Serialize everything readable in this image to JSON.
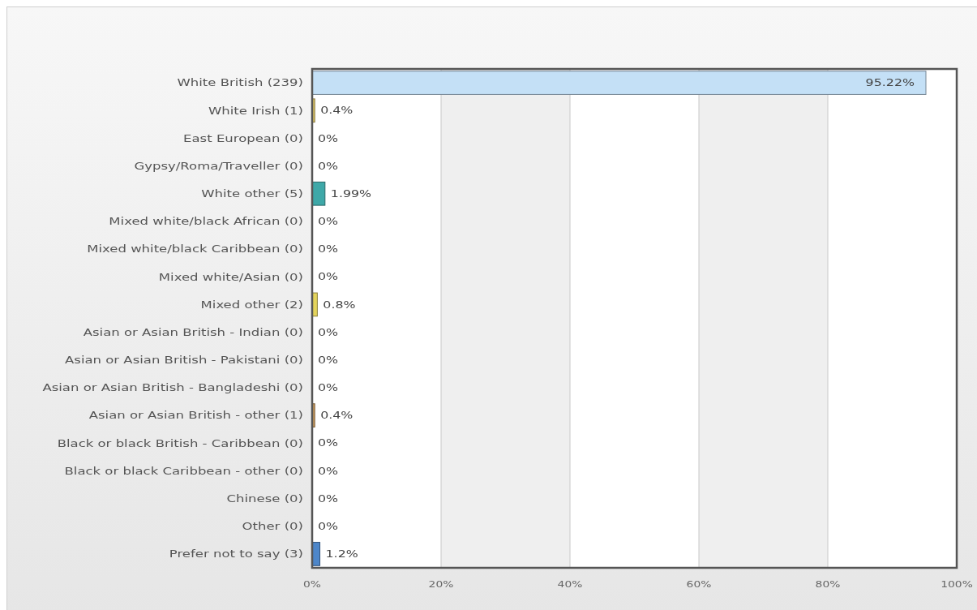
{
  "chart_data": {
    "type": "bar",
    "orientation": "horizontal",
    "categories": [
      "White British (239)",
      "White Irish (1)",
      "East European (0)",
      "Gypsy/Roma/Traveller (0)",
      "White other (5)",
      "Mixed white/black African (0)",
      "Mixed white/black Caribbean (0)",
      "Mixed white/Asian (0)",
      "Mixed other (2)",
      "Asian or Asian British - Indian (0)",
      "Asian or Asian British - Pakistani (0)",
      "Asian or Asian British - Bangladeshi (0)",
      "Asian or Asian British - other (1)",
      "Black or black British - Caribbean (0)",
      "Black or black Caribbean - other (0)",
      "Chinese (0)",
      "Other (0)",
      "Prefer not to say (3)"
    ],
    "values": [
      95.22,
      0.4,
      0,
      0,
      1.99,
      0,
      0,
      0,
      0.8,
      0,
      0,
      0,
      0.4,
      0,
      0,
      0,
      0,
      1.2
    ],
    "colors": [
      "#c4e0f6",
      "#dcc565",
      "#3ea8a8",
      "#8a8a8a",
      "#3ea8a8",
      "#8a8a8a",
      "#8a8a8a",
      "#8a8a8a",
      "#e4d45c",
      "#8a8a8a",
      "#8a8a8a",
      "#8a8a8a",
      "#c99a5c",
      "#8a8a8a",
      "#8a8a8a",
      "#8a8a8a",
      "#8a8a8a",
      "#4d86c9"
    ],
    "value_labels": [
      "95.22%",
      "0.4%",
      "0%",
      "0%",
      "1.99%",
      "0%",
      "0%",
      "0%",
      "0.8%",
      "0%",
      "0%",
      "0%",
      "0.4%",
      "0%",
      "0%",
      "0%",
      "0%",
      "1.2%"
    ],
    "xlim": [
      0,
      100
    ],
    "xticks": [
      {
        "value": 0,
        "label": "0%"
      },
      {
        "value": 20,
        "label": "20%"
      },
      {
        "value": 40,
        "label": "40%"
      },
      {
        "value": 60,
        "label": "60%"
      },
      {
        "value": 80,
        "label": "80%"
      },
      {
        "value": 100,
        "label": "100%"
      }
    ],
    "grid": "x"
  }
}
